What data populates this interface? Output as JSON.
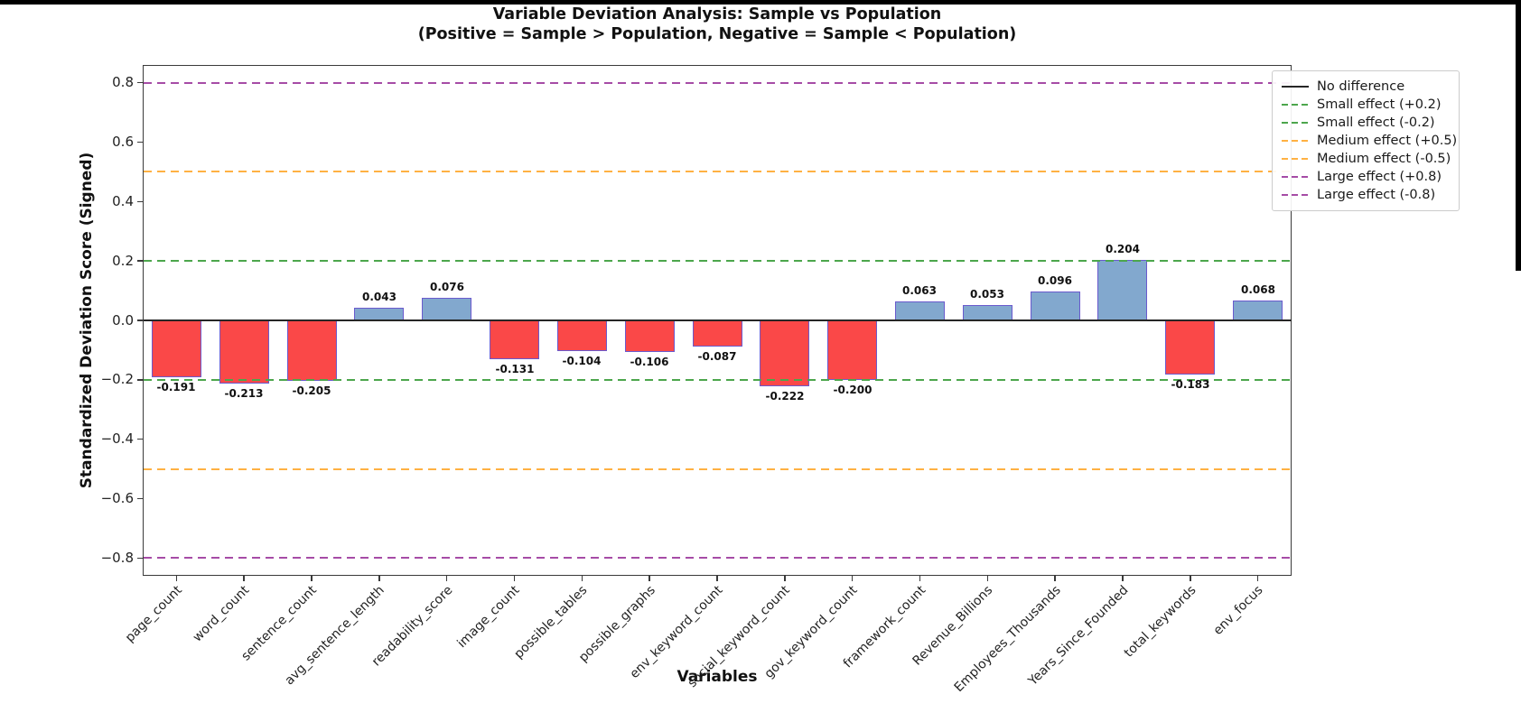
{
  "chart_data": {
    "type": "bar",
    "title": "Variable Deviation Analysis: Sample vs Population",
    "subtitle": "(Positive = Sample > Population, Negative = Sample < Population)",
    "xlabel": "Variables",
    "ylabel": "Standardized Deviation Score (Signed)",
    "ylim": [
      -0.86,
      0.86
    ],
    "yticks": [
      0.8,
      0.6,
      0.4,
      0.2,
      0.0,
      -0.2,
      -0.4,
      -0.6,
      -0.8
    ],
    "ytick_labels": [
      "0.8",
      "0.6",
      "0.4",
      "0.2",
      "0.0",
      "−0.2",
      "−0.4",
      "−0.6",
      "−0.8"
    ],
    "grid": false,
    "categories": [
      "page_count",
      "word_count",
      "sentence_count",
      "avg_sentence_length",
      "readability_score",
      "image_count",
      "possible_tables",
      "possible_graphs",
      "env_keyword_count",
      "social_keyword_count",
      "gov_keyword_count",
      "framework_count",
      "Revenue_Billions",
      "Employees_Thousands",
      "Years_Since_Founded",
      "total_keywords",
      "env_focus"
    ],
    "values": [
      -0.191,
      -0.213,
      -0.205,
      0.043,
      0.076,
      -0.131,
      -0.104,
      -0.106,
      -0.087,
      -0.222,
      -0.2,
      0.063,
      0.053,
      0.096,
      0.204,
      -0.183,
      0.068
    ],
    "value_labels": [
      "-0.191",
      "-0.213",
      "-0.205",
      "0.043",
      "0.076",
      "-0.131",
      "-0.104",
      "-0.106",
      "-0.087",
      "-0.222",
      "-0.200",
      "0.063",
      "0.053",
      "0.096",
      "0.204",
      "-0.183",
      "0.068"
    ],
    "colors": {
      "positive_bar": "#82a8ce",
      "negative_bar": "#fa4848",
      "bar_edge": "#6a5acd",
      "zero_line": "#262626",
      "small_effect": "#4ca64c",
      "medium_effect": "#ffb143",
      "large_effect": "#a64ca6"
    },
    "reference_lines": [
      {
        "label": "No difference",
        "y": 0.0,
        "style": "solid",
        "color": "#262626"
      },
      {
        "label": "Small effect (+0.2)",
        "y": 0.2,
        "style": "dashed",
        "color": "#4ca64c"
      },
      {
        "label": "Small effect (-0.2)",
        "y": -0.2,
        "style": "dashed",
        "color": "#4ca64c"
      },
      {
        "label": "Medium effect (+0.5)",
        "y": 0.5,
        "style": "dashed",
        "color": "#ffb143"
      },
      {
        "label": "Medium effect (-0.5)",
        "y": -0.5,
        "style": "dashed",
        "color": "#ffb143"
      },
      {
        "label": "Large effect (+0.8)",
        "y": 0.8,
        "style": "dashed",
        "color": "#a64ca6"
      },
      {
        "label": "Large effect (-0.8)",
        "y": -0.8,
        "style": "dashed",
        "color": "#a64ca6"
      }
    ],
    "legend_position": "outside upper right"
  }
}
